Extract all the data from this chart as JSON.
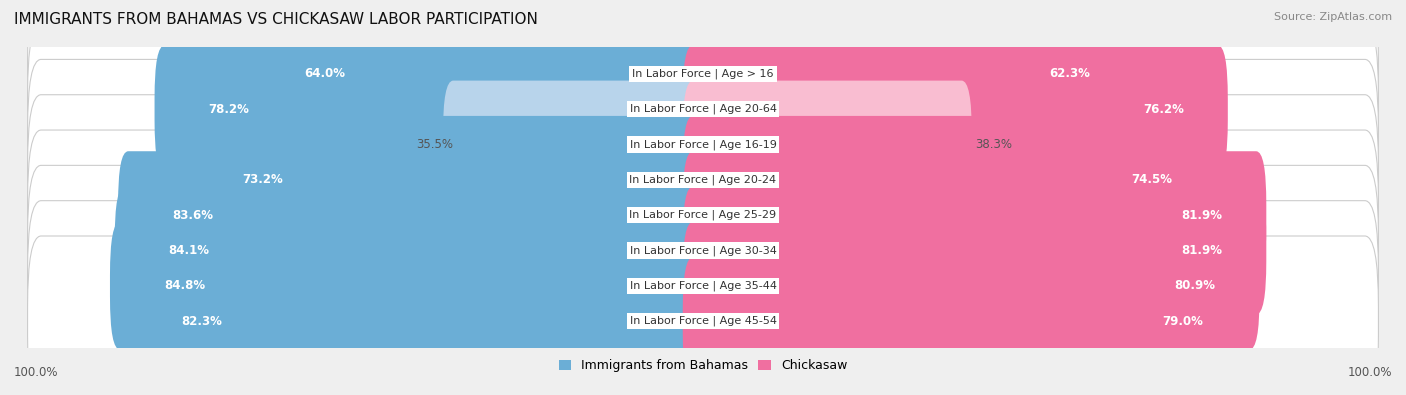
{
  "title": "IMMIGRANTS FROM BAHAMAS VS CHICKASAW LABOR PARTICIPATION",
  "source": "Source: ZipAtlas.com",
  "categories": [
    "In Labor Force | Age > 16",
    "In Labor Force | Age 20-64",
    "In Labor Force | Age 16-19",
    "In Labor Force | Age 20-24",
    "In Labor Force | Age 25-29",
    "In Labor Force | Age 30-34",
    "In Labor Force | Age 35-44",
    "In Labor Force | Age 45-54"
  ],
  "bahamas_values": [
    64.0,
    78.2,
    35.5,
    73.2,
    83.6,
    84.1,
    84.8,
    82.3
  ],
  "chickasaw_values": [
    62.3,
    76.2,
    38.3,
    74.5,
    81.9,
    81.9,
    80.9,
    79.0
  ],
  "bahamas_color": "#6baed6",
  "bahamas_color_light": "#b8d4eb",
  "chickasaw_color": "#f06fa0",
  "chickasaw_color_light": "#f9bdd1",
  "background_color": "#efefef",
  "row_bg_color": "#ffffff",
  "row_border_color": "#cccccc",
  "title_fontsize": 11,
  "source_fontsize": 8,
  "value_fontsize": 8.5,
  "label_fontsize": 8,
  "legend_fontsize": 9,
  "x_label": "100.0%"
}
